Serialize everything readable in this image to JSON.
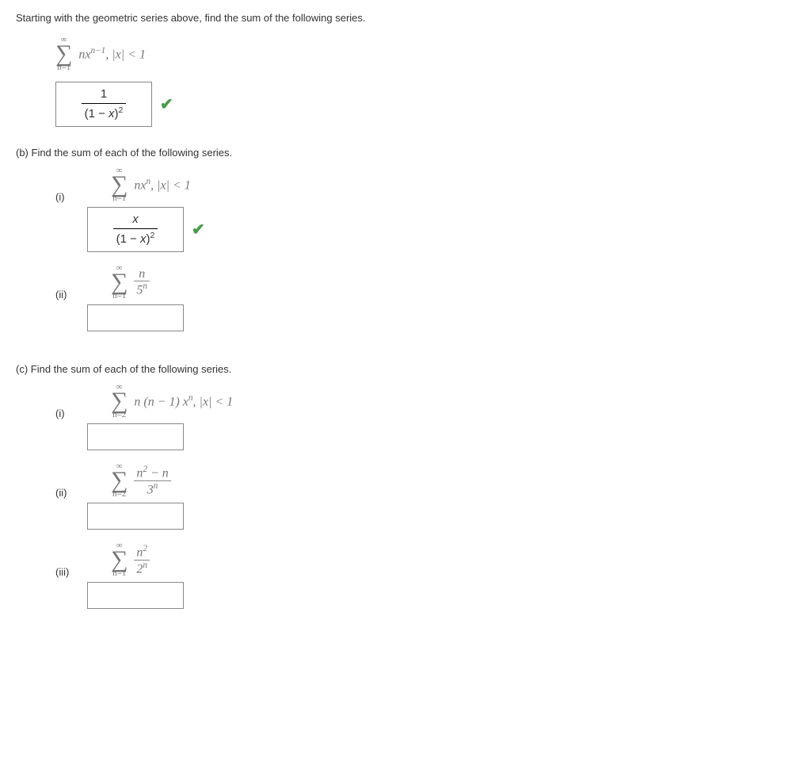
{
  "intro": "Starting with the geometric series above, find the sum of the following series.",
  "partA": {
    "sigma_top": "∞",
    "sigma_bot_var": "n",
    "sigma_bot_eq": "=1",
    "term_html": "nx<sup>n−1</sup>, |x| < 1",
    "answer_num": "1",
    "answer_den_html": "(1 − <i>x</i>)<sup>2</sup>",
    "correct": true
  },
  "partB": {
    "heading": "(b) Find the sum of each of the following series.",
    "items": [
      {
        "label": "(i)",
        "sigma_top": "∞",
        "sigma_bot_var": "n",
        "sigma_bot_eq": "=1",
        "term_html": "nx<sup>n</sup>, |x| < 1",
        "answer_num": "x",
        "answer_den_html": "(1 − <i>x</i>)<sup>2</sup>",
        "correct": true,
        "has_answer": true
      },
      {
        "label": "(ii)",
        "sigma_top": "∞",
        "sigma_bot_var": "n",
        "sigma_bot_eq": "=1",
        "frac_num_html": "n",
        "frac_den_html": "5<sup>n</sup>",
        "has_answer": false
      }
    ]
  },
  "partC": {
    "heading": "(c) Find the sum of each of the following series.",
    "items": [
      {
        "label": "(i)",
        "sigma_top": "∞",
        "sigma_bot_var": "n",
        "sigma_bot_eq": "=2",
        "term_html": "n (n − 1) x<sup>n</sup>, |x| < 1",
        "has_answer": false
      },
      {
        "label": "(ii)",
        "sigma_top": "∞",
        "sigma_bot_var": "n",
        "sigma_bot_eq": "=2",
        "frac_num_html": "n<sup>2</sup> − n",
        "frac_den_html": "3<sup>n</sup>",
        "has_answer": false
      },
      {
        "label": "(iii)",
        "sigma_top": "∞",
        "sigma_bot_var": "n",
        "sigma_bot_eq": "=1",
        "frac_num_html": "n<sup>2</sup>",
        "frac_den_html": "2<sup>n</sup>",
        "has_answer": false
      }
    ]
  }
}
